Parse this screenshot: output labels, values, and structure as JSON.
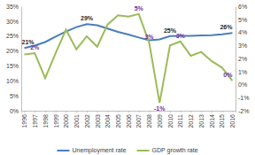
{
  "chart_data": {
    "type": "line",
    "categories": [
      "1996",
      "1997",
      "1998",
      "1999",
      "2000",
      "2001",
      "2002",
      "2003",
      "2004",
      "2005",
      "2006",
      "2007",
      "2008",
      "2009",
      "2010",
      "2011",
      "2012",
      "2013",
      "2014",
      "2015",
      "2016"
    ],
    "series": [
      {
        "name": "Unemployment rate",
        "color": "#4a7ebb",
        "values": [
          21,
          21.8,
          23,
          24.8,
          26.5,
          28,
          29,
          28.6,
          27.5,
          26.4,
          25.5,
          24.5,
          23.6,
          23.9,
          25,
          25.1,
          25.1,
          25.2,
          25.3,
          25.6,
          26
        ],
        "value_labels": [
          "21%",
          null,
          null,
          null,
          null,
          null,
          "29%",
          null,
          null,
          null,
          null,
          null,
          null,
          null,
          "25%",
          null,
          null,
          null,
          null,
          null,
          "26%"
        ]
      },
      {
        "name": "GDP growth rate",
        "color": "#9bbb59",
        "axis": "y2",
        "values": [
          2.3,
          2.4,
          0.5,
          2.4,
          4.2,
          2.7,
          3.7,
          2.9,
          4.6,
          5.3,
          5.2,
          5.4,
          3.2,
          -1.4,
          3.0,
          3.3,
          2.2,
          2.5,
          1.8,
          1.3,
          0.3
        ],
        "value_labels": [
          null,
          "2%",
          null,
          null,
          null,
          null,
          null,
          null,
          null,
          null,
          null,
          "5%",
          "3%",
          "-1%",
          null,
          "3%",
          null,
          null,
          null,
          null,
          "0%"
        ]
      }
    ],
    "ylim": [
      0,
      35
    ],
    "yticks": [
      {
        "value": 0,
        "label": "0%"
      },
      {
        "value": 5,
        "label": "5%"
      },
      {
        "value": 10,
        "label": "10%"
      },
      {
        "value": 15,
        "label": "15%"
      },
      {
        "value": 20,
        "label": "20%"
      },
      {
        "value": 25,
        "label": "25%"
      },
      {
        "value": 30,
        "label": "30%"
      },
      {
        "value": 35,
        "label": "35%"
      }
    ],
    "y2lim": [
      -2,
      6
    ],
    "y2ticks": [
      {
        "value": -2,
        "label": "-2%"
      },
      {
        "value": -1,
        "label": "-1%"
      },
      {
        "value": 0,
        "label": "0%"
      },
      {
        "value": 1,
        "label": "1%"
      },
      {
        "value": 2,
        "label": "2%"
      },
      {
        "value": 3,
        "label": "3%"
      },
      {
        "value": 4,
        "label": "4%"
      },
      {
        "value": 5,
        "label": "5%"
      },
      {
        "value": 6,
        "label": "6%"
      }
    ],
    "data_labels": true,
    "grid": false,
    "legend": "bottom"
  }
}
